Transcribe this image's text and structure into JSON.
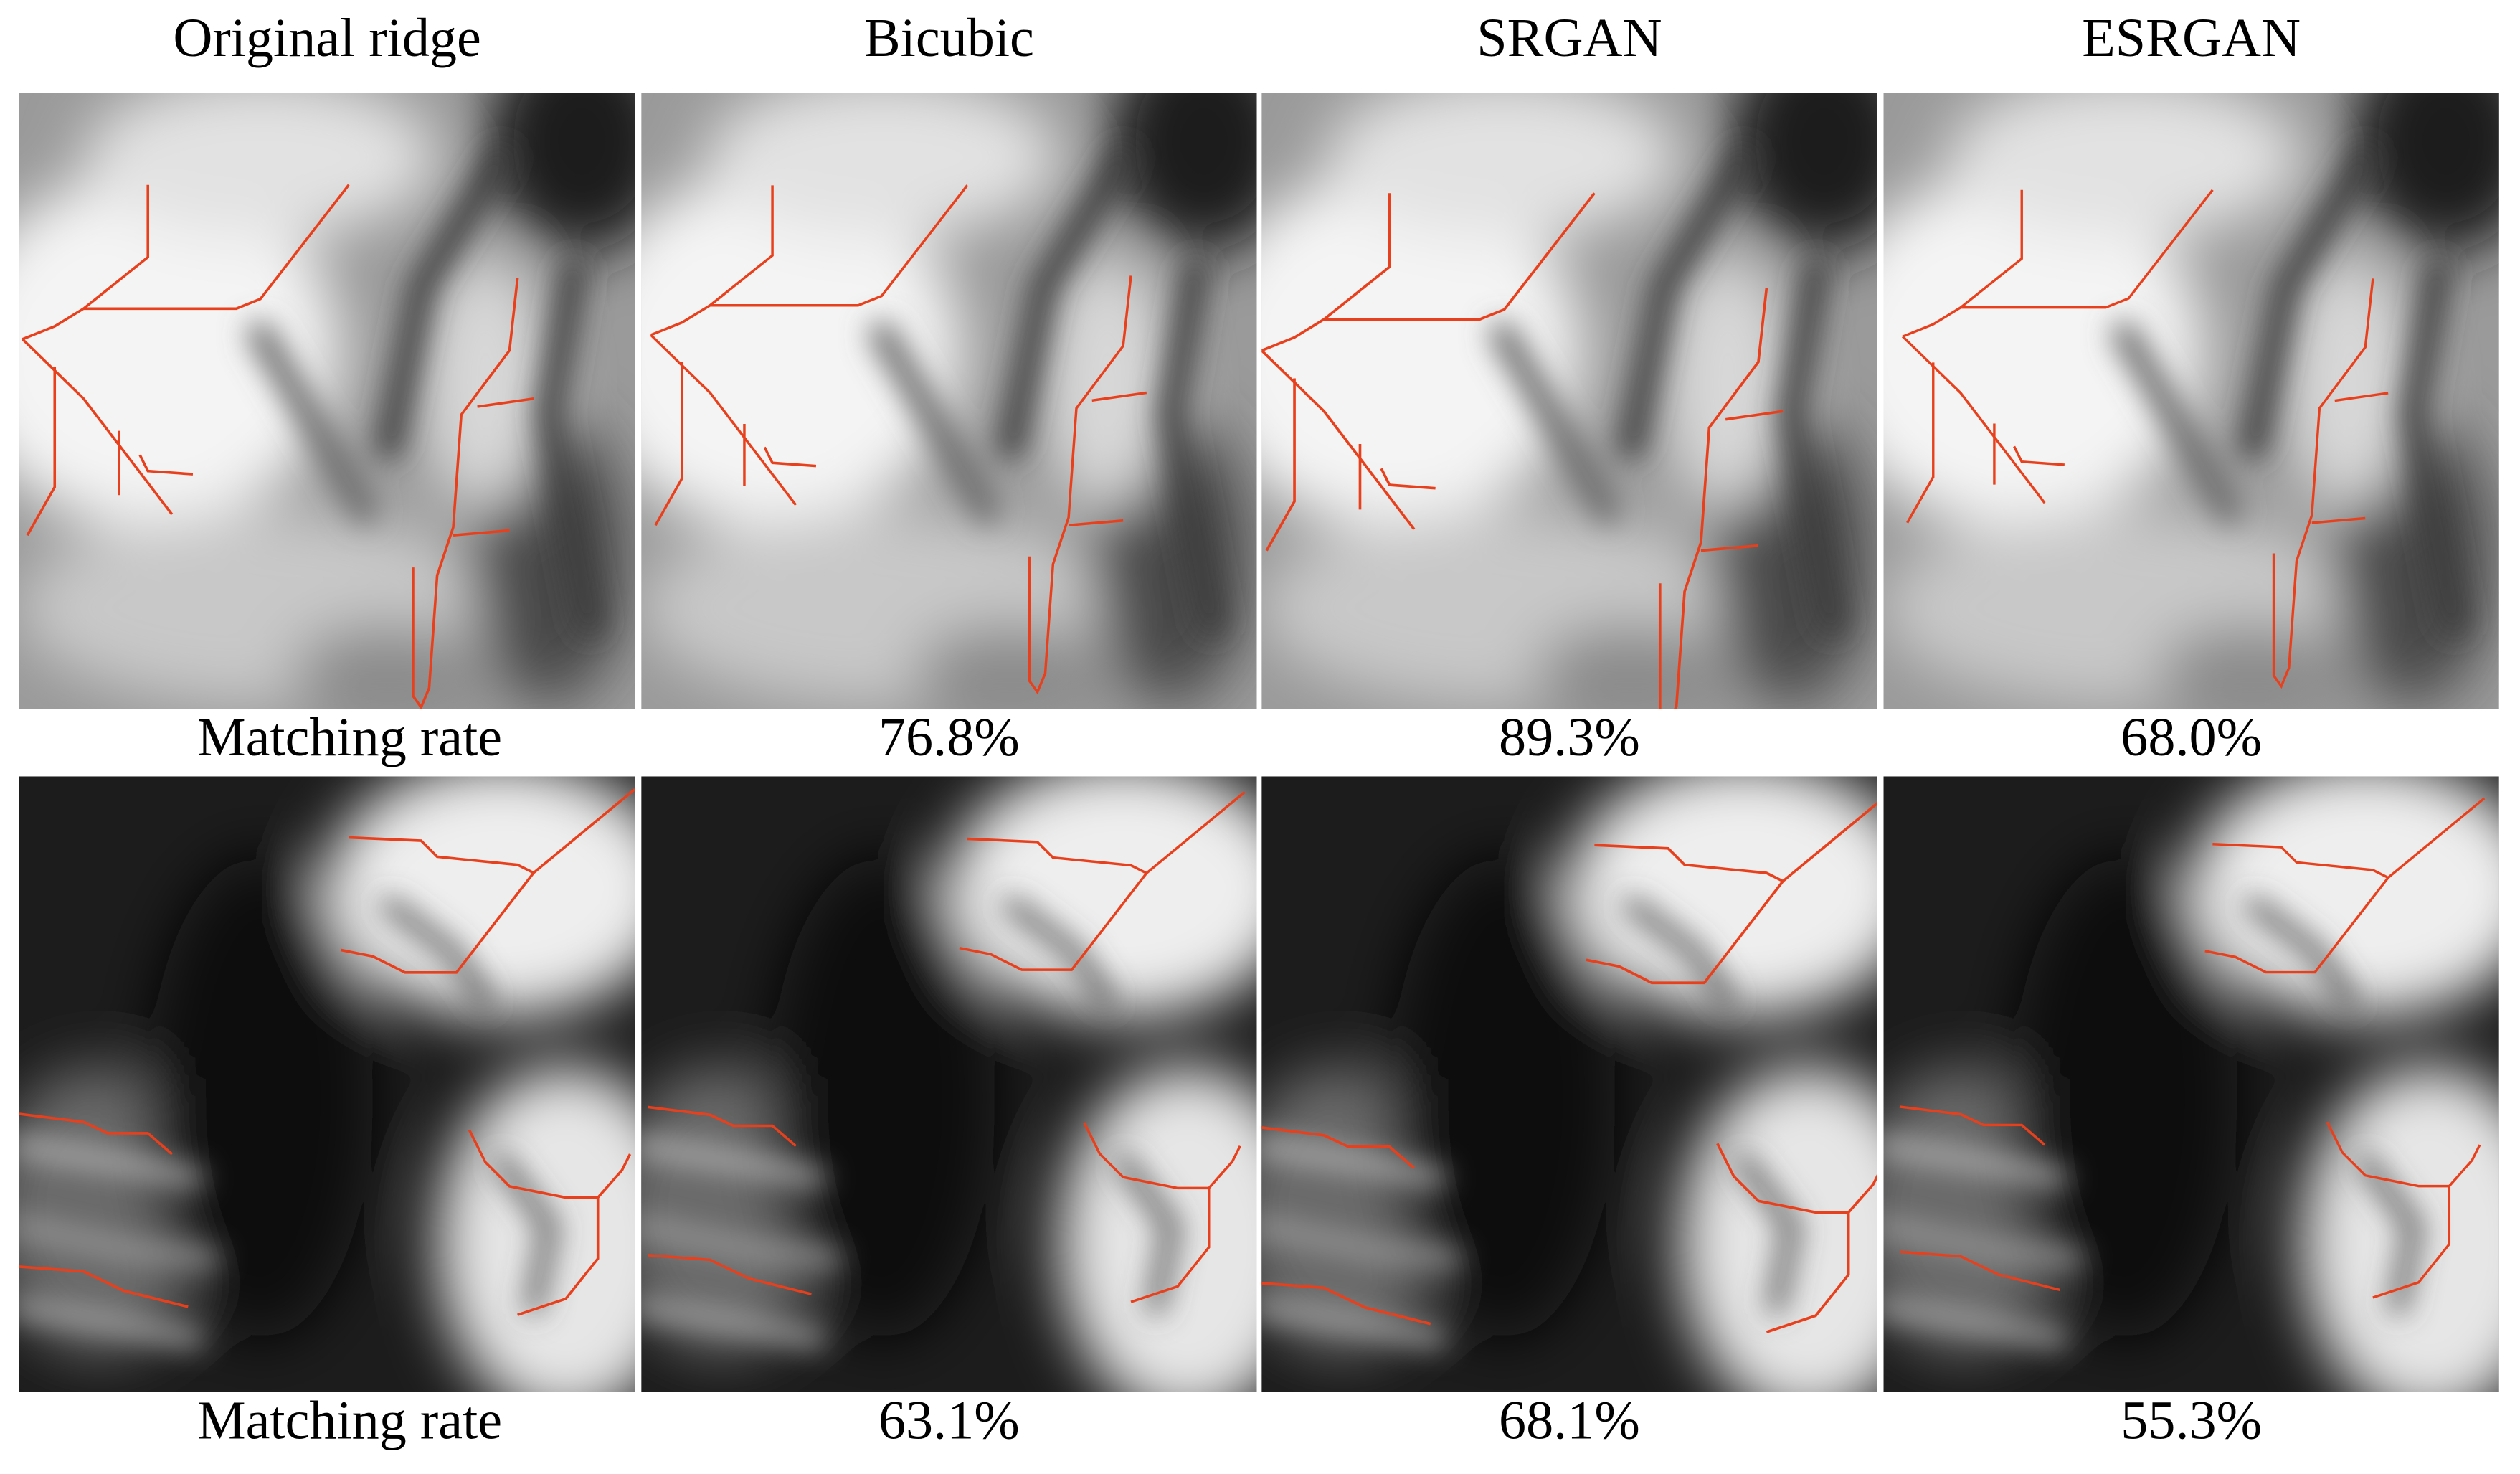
{
  "headers": [
    "Original ridge",
    "Bicubic",
    "SRGAN",
    "ESRGAN"
  ],
  "rows": [
    {
      "label": "Matching rate",
      "rates": [
        "76.8%",
        "89.3%",
        "68.0%"
      ]
    },
    {
      "label": "Matching rate",
      "rates": [
        "63.1%",
        "68.1%",
        "55.3%"
      ]
    }
  ]
}
